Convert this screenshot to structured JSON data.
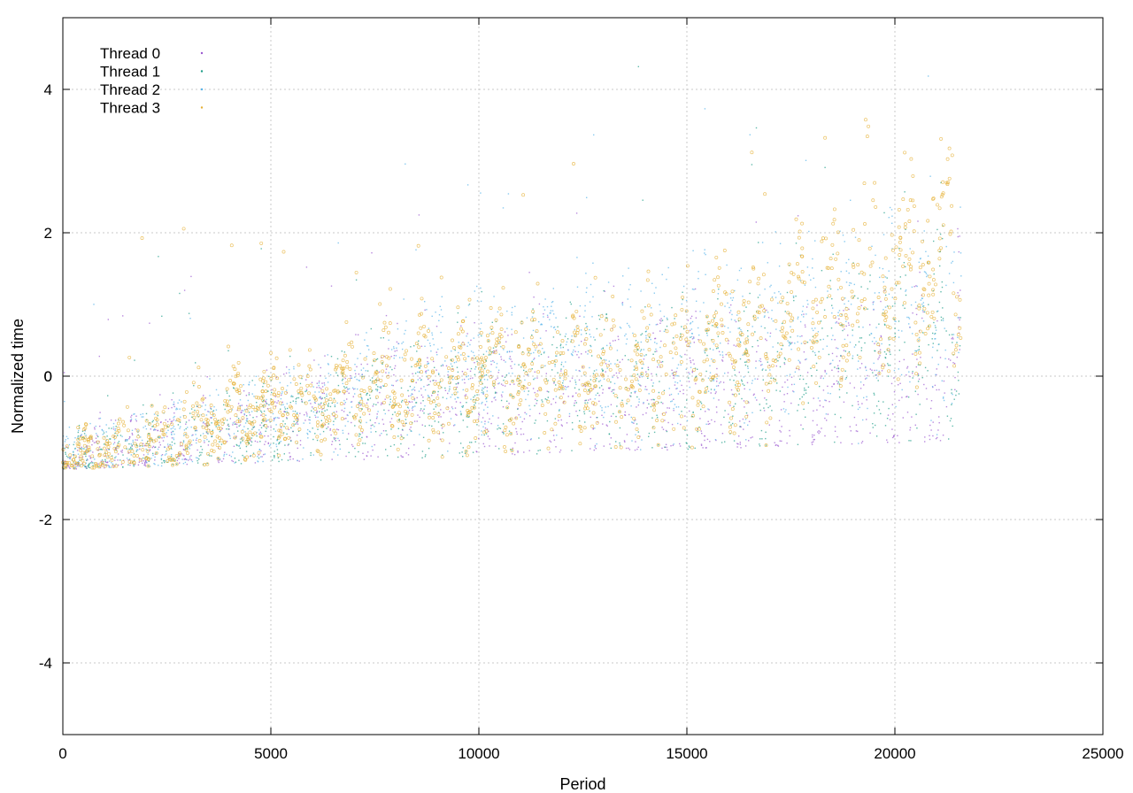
{
  "chart_data": {
    "type": "scatter",
    "title": "",
    "xlabel": "Period",
    "ylabel": "Normalized time",
    "xlim": [
      0,
      25000
    ],
    "ylim": [
      -5,
      5
    ],
    "xticks": [
      0,
      5000,
      10000,
      15000,
      20000,
      25000
    ],
    "yticks": [
      -4,
      -2,
      0,
      2,
      4
    ],
    "grid": true,
    "legend_position": "top-left",
    "series": [
      {
        "name": "Thread 0",
        "color": "#9b59d0",
        "marker": "dot",
        "trend": [
          [
            0,
            -1.2
          ],
          [
            3000,
            -0.9
          ],
          [
            6000,
            -0.6
          ],
          [
            9000,
            -0.3
          ],
          [
            12000,
            -0.3
          ],
          [
            15000,
            -0.2
          ],
          [
            18000,
            -0.2
          ],
          [
            21600,
            0.0
          ]
        ]
      },
      {
        "name": "Thread 1",
        "color": "#1f9e89",
        "marker": "dot",
        "trend": [
          [
            0,
            -1.15
          ],
          [
            3000,
            -0.85
          ],
          [
            6000,
            -0.55
          ],
          [
            9000,
            -0.3
          ],
          [
            12000,
            -0.15
          ],
          [
            15000,
            0.0
          ],
          [
            18000,
            0.3
          ],
          [
            21600,
            0.6
          ]
        ]
      },
      {
        "name": "Thread 2",
        "color": "#56b4e9",
        "marker": "dot",
        "trend": [
          [
            0,
            -1.1
          ],
          [
            3000,
            -0.8
          ],
          [
            6000,
            -0.5
          ],
          [
            9000,
            0.1
          ],
          [
            12000,
            0.3
          ],
          [
            15000,
            0.4
          ],
          [
            18000,
            0.6
          ],
          [
            21600,
            0.8
          ]
        ]
      },
      {
        "name": "Thread 3",
        "color": "#e6b034",
        "marker": "circle",
        "trend": [
          [
            0,
            -1.2
          ],
          [
            3000,
            -0.7
          ],
          [
            6000,
            -0.3
          ],
          [
            9000,
            0.0
          ],
          [
            12000,
            0.0
          ],
          [
            15000,
            0.2
          ],
          [
            18000,
            1.0
          ],
          [
            21600,
            1.6
          ]
        ]
      }
    ],
    "x_range_data": [
      0,
      21600
    ]
  }
}
